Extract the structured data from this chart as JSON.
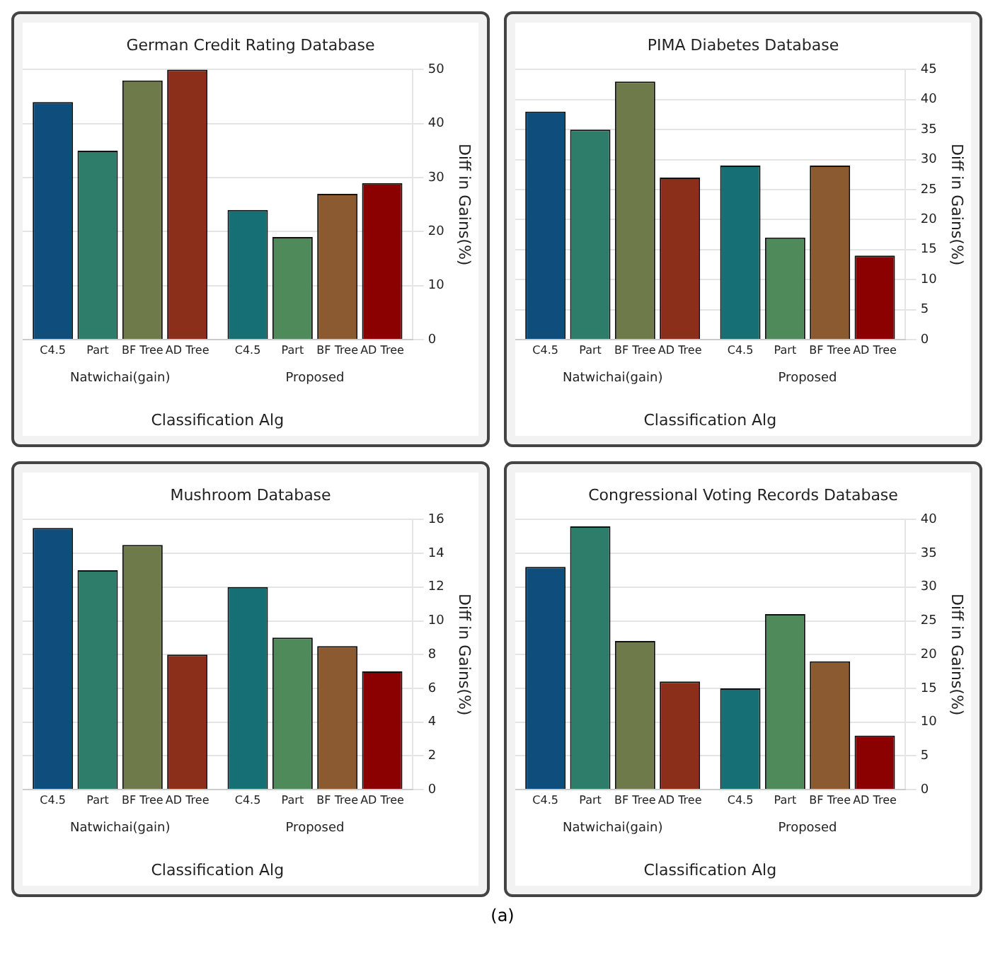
{
  "chart_data": [
    {
      "type": "bar",
      "title": "German Credit Rating Database",
      "categories": [
        "Natwichai(gain)",
        "Proposed"
      ],
      "xlabel": "Classification Alg",
      "ylabel": "Diff in Gains(%)",
      "ylim": [
        0,
        50
      ],
      "yticks": [
        0,
        10,
        20,
        30,
        40,
        50
      ],
      "grid": "y",
      "series": [
        {
          "name": "C4.5",
          "colors": [
            "#0e4d7c",
            "#166f74"
          ],
          "values": [
            44,
            24
          ]
        },
        {
          "name": "Part",
          "colors": [
            "#2e7d6a",
            "#4e8a5a"
          ],
          "values": [
            35,
            19
          ]
        },
        {
          "name": "BF Tree",
          "colors": [
            "#6f7a4a",
            "#8c5a30"
          ],
          "values": [
            48,
            27
          ]
        },
        {
          "name": "AD Tree",
          "colors": [
            "#8b2e1a",
            "#8b0000"
          ],
          "values": [
            50,
            29
          ]
        }
      ]
    },
    {
      "type": "bar",
      "title": "PIMA Diabetes Database",
      "categories": [
        "Natwichai(gain)",
        "Proposed"
      ],
      "xlabel": "Classification Alg",
      "ylabel": "Diff in Gains(%)",
      "ylim": [
        0,
        45
      ],
      "yticks": [
        0,
        5,
        10,
        15,
        20,
        25,
        30,
        35,
        40,
        45
      ],
      "grid": "y",
      "series": [
        {
          "name": "C4.5",
          "colors": [
            "#0e4d7c",
            "#166f74"
          ],
          "values": [
            38,
            29
          ]
        },
        {
          "name": "Part",
          "colors": [
            "#2e7d6a",
            "#4e8a5a"
          ],
          "values": [
            35,
            17
          ]
        },
        {
          "name": "BF Tree",
          "colors": [
            "#6f7a4a",
            "#8c5a30"
          ],
          "values": [
            43,
            29
          ]
        },
        {
          "name": "AD Tree",
          "colors": [
            "#8b2e1a",
            "#8b0000"
          ],
          "values": [
            27,
            14
          ]
        }
      ]
    },
    {
      "type": "bar",
      "title": "Mushroom Database",
      "categories": [
        "Natwichai(gain)",
        "Proposed"
      ],
      "xlabel": "Classification Alg",
      "ylabel": "Diff in Gains(%)",
      "ylim": [
        0,
        16
      ],
      "yticks": [
        0,
        2,
        4,
        6,
        8,
        10,
        12,
        14,
        16
      ],
      "grid": "y",
      "series": [
        {
          "name": "C4.5",
          "colors": [
            "#0e4d7c",
            "#166f74"
          ],
          "values": [
            15.5,
            12
          ]
        },
        {
          "name": "Part",
          "colors": [
            "#2e7d6a",
            "#4e8a5a"
          ],
          "values": [
            13,
            9
          ]
        },
        {
          "name": "BF Tree",
          "colors": [
            "#6f7a4a",
            "#8c5a30"
          ],
          "values": [
            14.5,
            8.5
          ]
        },
        {
          "name": "AD Tree",
          "colors": [
            "#8b2e1a",
            "#8b0000"
          ],
          "values": [
            8,
            7
          ]
        }
      ]
    },
    {
      "type": "bar",
      "title": "Congressional Voting Records Database",
      "categories": [
        "Natwichai(gain)",
        "Proposed"
      ],
      "xlabel": "Classification Alg",
      "ylabel": "Diff in Gains(%)",
      "ylim": [
        0,
        40
      ],
      "yticks": [
        0,
        5,
        10,
        15,
        20,
        25,
        30,
        35,
        40
      ],
      "grid": "y",
      "series": [
        {
          "name": "C4.5",
          "colors": [
            "#0e4d7c",
            "#166f74"
          ],
          "values": [
            33,
            15
          ]
        },
        {
          "name": "Part",
          "colors": [
            "#2e7d6a",
            "#4e8a5a"
          ],
          "values": [
            39,
            26
          ]
        },
        {
          "name": "BF Tree",
          "colors": [
            "#6f7a4a",
            "#8c5a30"
          ],
          "values": [
            22,
            19
          ]
        },
        {
          "name": "AD Tree",
          "colors": [
            "#8b2e1a",
            "#8b0000"
          ],
          "values": [
            16,
            8
          ]
        }
      ]
    },
    {
      "type": "other",
      "title": "(a)"
    }
  ]
}
